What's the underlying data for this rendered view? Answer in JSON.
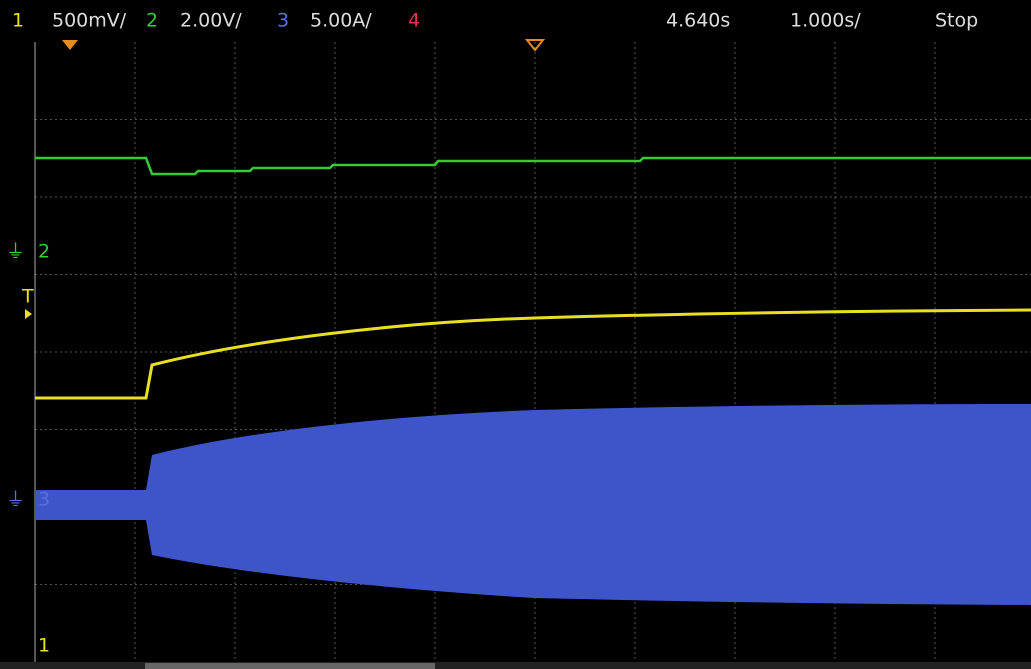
{
  "header": {
    "ch1": {
      "label": "1",
      "scale": "500mV/"
    },
    "ch2": {
      "label": "2",
      "scale": "2.00V/"
    },
    "ch3": {
      "label": "3",
      "scale": "5.00A/"
    },
    "ch4": {
      "label": "4"
    },
    "delay": "4.640s",
    "timebase": "1.000s/",
    "status": "Stop"
  },
  "markers": {
    "ch2": "2",
    "trigger": "T",
    "ch3": "3",
    "ch1": "1"
  }
}
